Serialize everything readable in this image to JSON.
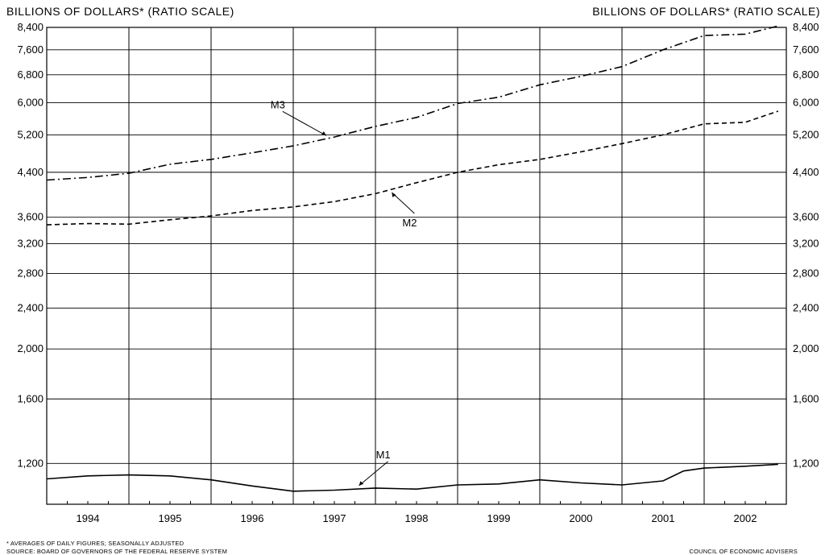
{
  "header": {
    "left_axis_title": "BILLIONS OF DOLLARS* (RATIO SCALE)",
    "right_axis_title": "BILLIONS OF DOLLARS* (RATIO SCALE)"
  },
  "footer": {
    "note": "* AVERAGES OF DAILY FIGURES; SEASONALLY ADJUSTED",
    "source": "SOURCE: BOARD OF GOVERNORS OF THE FEDERAL RESERVE SYSTEM",
    "credit": "COUNCIL OF ECONOMIC ADVISERS"
  },
  "chart_data": {
    "type": "line",
    "title": "",
    "xlabel": "",
    "ylabel": "BILLIONS OF DOLLARS* (RATIO SCALE)",
    "y_scale": "log",
    "ylim": [
      1000,
      8400
    ],
    "xlim": [
      1994.0,
      2003.0
    ],
    "grid": true,
    "legend": "none",
    "y_ticks": [
      1200,
      1600,
      2000,
      2400,
      2800,
      3200,
      3600,
      4400,
      5200,
      6000,
      6800,
      7600,
      8400
    ],
    "y_tick_labels": [
      "1,200",
      "1,600",
      "2,000",
      "2,400",
      "2,800",
      "3,200",
      "3,600",
      "4,400",
      "5,200",
      "6,000",
      "6,800",
      "7,600",
      "8,400"
    ],
    "x_categories": [
      "1994",
      "1995",
      "1996",
      "1997",
      "1998",
      "1999",
      "2000",
      "2001",
      "2002"
    ],
    "series": [
      {
        "name": "M3",
        "style": "dash-dot",
        "x": [
          1994.0,
          1994.5,
          1995.0,
          1995.5,
          1996.0,
          1996.5,
          1997.0,
          1997.5,
          1998.0,
          1998.5,
          1999.0,
          1999.5,
          2000.0,
          2000.5,
          2001.0,
          2001.5,
          2002.0,
          2002.5,
          2002.9
        ],
        "values": [
          4250,
          4300,
          4380,
          4560,
          4660,
          4800,
          4950,
          5150,
          5400,
          5620,
          5980,
          6150,
          6500,
          6750,
          7050,
          7600,
          8100,
          8150,
          8450
        ]
      },
      {
        "name": "M2",
        "style": "dashed",
        "x": [
          1994.0,
          1994.5,
          1995.0,
          1995.5,
          1996.0,
          1996.5,
          1997.0,
          1997.5,
          1998.0,
          1998.5,
          1999.0,
          1999.5,
          2000.0,
          2000.5,
          2001.0,
          2001.5,
          2002.0,
          2002.5,
          2002.9
        ],
        "values": [
          3480,
          3500,
          3490,
          3560,
          3620,
          3710,
          3770,
          3860,
          4000,
          4200,
          4400,
          4550,
          4660,
          4820,
          5000,
          5200,
          5460,
          5500,
          5780
        ]
      },
      {
        "name": "M1",
        "style": "solid",
        "x": [
          1994.0,
          1994.5,
          1995.0,
          1995.5,
          1996.0,
          1996.5,
          1997.0,
          1997.5,
          1998.0,
          1998.5,
          1999.0,
          1999.5,
          2000.0,
          2000.5,
          2001.0,
          2001.5,
          2001.75,
          2002.0,
          2002.5,
          2002.9
        ],
        "values": [
          1120,
          1135,
          1140,
          1135,
          1115,
          1085,
          1060,
          1065,
          1075,
          1070,
          1090,
          1095,
          1115,
          1100,
          1090,
          1110,
          1160,
          1175,
          1185,
          1195
        ]
      }
    ],
    "annotations": [
      {
        "text": "M3",
        "series": "M3"
      },
      {
        "text": "M2",
        "series": "M2"
      },
      {
        "text": "M1",
        "series": "M1"
      }
    ]
  }
}
